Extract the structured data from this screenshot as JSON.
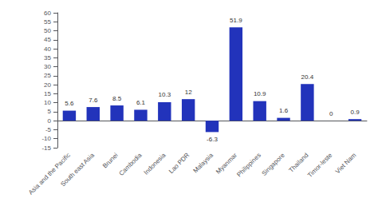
{
  "chart_data": {
    "type": "bar",
    "categories": [
      "Asia and the Pacific",
      "South east Asia",
      "Brunei",
      "Cambodia",
      "Indonesia",
      "Lao PDR",
      "Malaysia",
      "Myanmar",
      "Philippines",
      "Singapore",
      "Thailand",
      "Timor-leste",
      "Viet Nam"
    ],
    "values": [
      5.6,
      7.6,
      8.5,
      6.1,
      10.3,
      12,
      -6.3,
      51.9,
      10.9,
      1.6,
      20.4,
      0,
      0.9
    ],
    "color": "#2233bb",
    "ylim": [
      -15,
      60
    ],
    "yticks": [
      -15,
      -10,
      -5,
      0,
      5,
      10,
      15,
      20,
      25,
      30,
      35,
      40,
      45,
      50,
      55,
      60
    ],
    "grid": false,
    "data_labels": true
  }
}
